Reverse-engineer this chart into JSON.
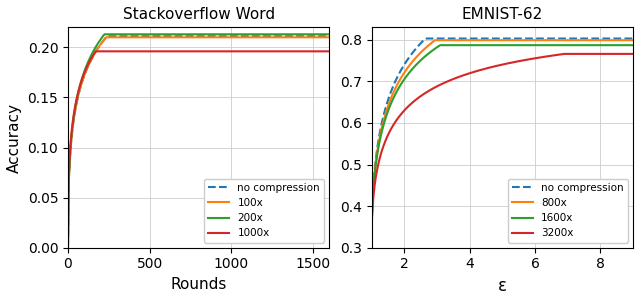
{
  "left_title": "Stackoverflow Word",
  "left_xlabel": "Rounds",
  "left_ylabel": "Accuracy",
  "left_xlim": [
    0,
    1600
  ],
  "left_ylim": [
    0.0,
    0.22
  ],
  "left_yticks": [
    0.0,
    0.05,
    0.1,
    0.15,
    0.2
  ],
  "left_xticks": [
    0,
    500,
    1000,
    1500
  ],
  "left_legend": [
    "no compression",
    "100x",
    "200x",
    "1000x"
  ],
  "left_colors": [
    "#1f77b4",
    "#ff7f0e",
    "#2ca02c",
    "#d62728"
  ],
  "left_styles": [
    "--",
    "-",
    "-",
    "-"
  ],
  "right_title": "EMNIST-62",
  "right_xlabel": "ε",
  "right_ylabel": "",
  "right_xlim": [
    1.0,
    9.0
  ],
  "right_ylim": [
    0.3,
    0.83
  ],
  "right_yticks": [
    0.3,
    0.4,
    0.5,
    0.6,
    0.7,
    0.8
  ],
  "right_xticks": [
    2,
    4,
    6,
    8
  ],
  "right_legend": [
    "no compression",
    "800x",
    "1600x",
    "3200x"
  ],
  "right_colors": [
    "#1f77b4",
    "#ff7f0e",
    "#2ca02c",
    "#d62728"
  ],
  "right_styles": [
    "--",
    "-",
    "-",
    "-"
  ]
}
